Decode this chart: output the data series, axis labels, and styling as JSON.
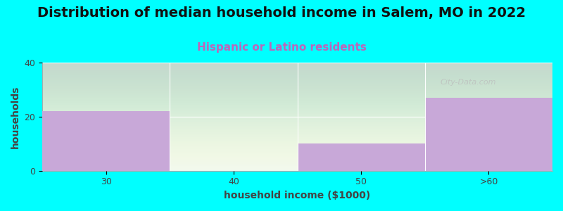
{
  "title": "Distribution of median household income in Salem, MO in 2022",
  "subtitle": "Hispanic or Latino residents",
  "xlabel": "household income ($1000)",
  "ylabel": "households",
  "categories": [
    "30",
    "40",
    "50",
    ">60"
  ],
  "values": [
    22,
    0,
    10,
    27
  ],
  "bar_color": "#c8a8d8",
  "bar_edgecolor": "#c8a8d8",
  "background_color": "#00ffff",
  "plot_bg_gradient_top": "#e8f2e4",
  "plot_bg_gradient_bottom": "#f8fff8",
  "ylim": [
    0,
    40
  ],
  "yticks": [
    0,
    20,
    40
  ],
  "title_fontsize": 14,
  "subtitle_fontsize": 11,
  "subtitle_color": "#bb66bb",
  "axis_label_fontsize": 10,
  "tick_label_fontsize": 9,
  "watermark_text": "City-Data.com",
  "watermark_color": "#bbbbbb"
}
